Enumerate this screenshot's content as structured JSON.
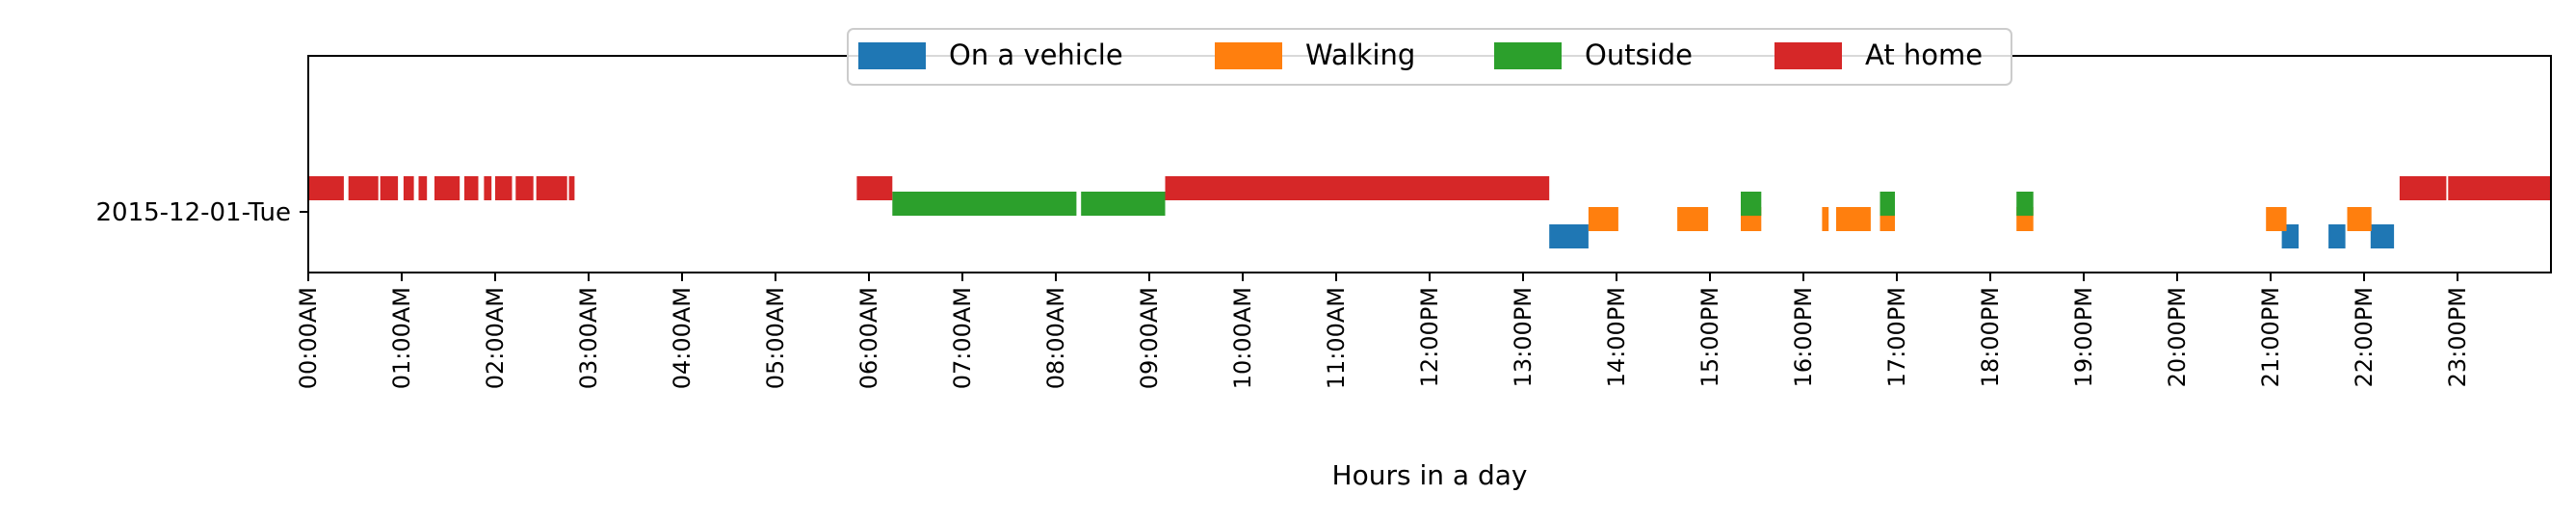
{
  "chart_data": {
    "type": "timeline",
    "xlabel": "Hours in a day",
    "ylabel": "",
    "xlim": [
      0,
      24
    ],
    "x_ticks": [
      {
        "v": 0,
        "label": "00:00AM"
      },
      {
        "v": 1,
        "label": "01:00AM"
      },
      {
        "v": 2,
        "label": "02:00AM"
      },
      {
        "v": 3,
        "label": "03:00AM"
      },
      {
        "v": 4,
        "label": "04:00AM"
      },
      {
        "v": 5,
        "label": "05:00AM"
      },
      {
        "v": 6,
        "label": "06:00AM"
      },
      {
        "v": 7,
        "label": "07:00AM"
      },
      {
        "v": 8,
        "label": "08:00AM"
      },
      {
        "v": 9,
        "label": "09:00AM"
      },
      {
        "v": 10,
        "label": "10:00AM"
      },
      {
        "v": 11,
        "label": "11:00AM"
      },
      {
        "v": 12,
        "label": "12:00PM"
      },
      {
        "v": 13,
        "label": "13:00PM"
      },
      {
        "v": 14,
        "label": "14:00PM"
      },
      {
        "v": 15,
        "label": "15:00PM"
      },
      {
        "v": 16,
        "label": "16:00PM"
      },
      {
        "v": 17,
        "label": "17:00PM"
      },
      {
        "v": 18,
        "label": "18:00PM"
      },
      {
        "v": 19,
        "label": "19:00PM"
      },
      {
        "v": 20,
        "label": "20:00PM"
      },
      {
        "v": 21,
        "label": "21:00PM"
      },
      {
        "v": 22,
        "label": "22:00PM"
      },
      {
        "v": 23,
        "label": "23:00PM"
      }
    ],
    "y_categories": [
      "2015-12-01-Tue"
    ],
    "legend_position": "top-center",
    "series": [
      {
        "name": "On a vehicle",
        "color": "#1f77b4",
        "lane": 0,
        "segments": [
          [
            13.28,
            13.7
          ],
          [
            21.12,
            21.3
          ],
          [
            21.62,
            21.8
          ],
          [
            22.07,
            22.32
          ]
        ]
      },
      {
        "name": "Walking",
        "color": "#ff7f0e",
        "lane": 1,
        "segments": [
          [
            13.7,
            14.02
          ],
          [
            14.65,
            14.98
          ],
          [
            15.33,
            15.55
          ],
          [
            16.2,
            16.27
          ],
          [
            16.35,
            16.72
          ],
          [
            16.82,
            16.98
          ],
          [
            18.28,
            18.46
          ],
          [
            20.95,
            21.17
          ],
          [
            21.82,
            22.08
          ]
        ]
      },
      {
        "name": "Outside",
        "color": "#2ca02c",
        "lane": 2,
        "segments": [
          [
            6.25,
            8.22
          ],
          [
            8.27,
            9.17
          ],
          [
            15.33,
            15.55
          ],
          [
            16.82,
            16.98
          ],
          [
            18.28,
            18.46
          ]
        ]
      },
      {
        "name": "At home",
        "color": "#d62728",
        "lane": 3,
        "segments": [
          [
            0.0,
            0.38
          ],
          [
            0.43,
            0.75
          ],
          [
            0.77,
            0.96
          ],
          [
            1.02,
            1.13
          ],
          [
            1.18,
            1.27
          ],
          [
            1.35,
            1.62
          ],
          [
            1.67,
            1.82
          ],
          [
            1.88,
            1.96
          ],
          [
            2.0,
            2.18
          ],
          [
            2.22,
            2.41
          ],
          [
            2.44,
            2.77
          ],
          [
            2.79,
            2.85
          ],
          [
            5.87,
            6.25
          ],
          [
            9.17,
            13.28
          ],
          [
            22.38,
            22.88
          ],
          [
            22.9,
            24.0
          ]
        ]
      }
    ]
  }
}
